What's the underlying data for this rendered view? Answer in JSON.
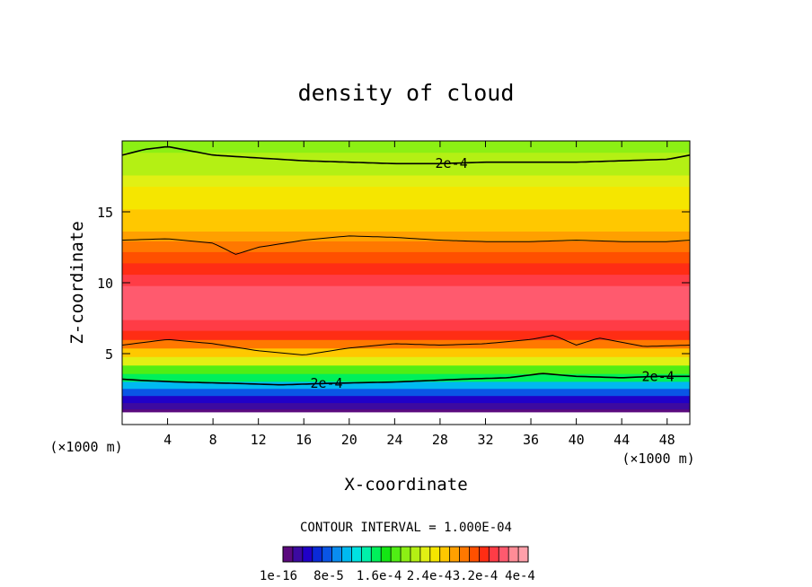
{
  "chart_data": {
    "type": "heatmap",
    "title": "density of cloud",
    "xlabel": "X-coordinate",
    "ylabel": "Z-coordinate",
    "x_unit_left": "(×1000 m)",
    "x_unit_right": "(×1000 m)",
    "xlim": [
      0,
      50
    ],
    "ylim": [
      0,
      20
    ],
    "x_ticks": [
      4,
      8,
      12,
      16,
      20,
      24,
      28,
      32,
      36,
      40,
      44,
      48
    ],
    "y_ticks": [
      5,
      10,
      15
    ],
    "contour_label": "2e-4",
    "contour_interval_text": "CONTOUR INTERVAL = 1.000E-04",
    "colorbar_labels": [
      "1e-16",
      "8e-5",
      "1.6e-4",
      "2.4e-4",
      "3.2e-4",
      "4e-4"
    ],
    "colorbar_colors": [
      "#5b0a7e",
      "#3c0aa0",
      "#2000c8",
      "#0a2ad8",
      "#0a55e6",
      "#0a8cf0",
      "#00b9f0",
      "#00e1e1",
      "#00f0aa",
      "#00f05a",
      "#14e614",
      "#50ee14",
      "#8cf014",
      "#b4f014",
      "#e1f014",
      "#f5e600",
      "#ffc800",
      "#ffa000",
      "#ff7800",
      "#ff5000",
      "#ff2d14",
      "#ff3c46",
      "#ff5a6e",
      "#ff8c96",
      "#ffa0aa"
    ],
    "profile": {
      "z": [
        0.9,
        1.3,
        1.8,
        2.3,
        2.8,
        3.3,
        3.9,
        4.5,
        5.1,
        5.7,
        6.3,
        7.0,
        7.8,
        8.6,
        9.4,
        10.2,
        11.0,
        11.8,
        12.6,
        13.3,
        14.0,
        14.8,
        15.6,
        16.4,
        17.2,
        18.0,
        18.8,
        19.6
      ],
      "density": [
        0.0,
        2e-05,
        4e-05,
        7e-05,
        0.00011,
        0.00015,
        0.00019,
        0.00023,
        0.00027,
        0.0003,
        0.00032,
        0.00034,
        0.000355,
        0.00036,
        0.000355,
        0.000345,
        0.00033,
        0.000315,
        0.0003,
        0.000285,
        0.00027,
        0.00026,
        0.00025,
        0.00024,
        0.00023,
        0.00022,
        0.00021,
        0.000195
      ]
    },
    "contour_lines": [
      {
        "level": "2e-4",
        "x": [
          0,
          2,
          5,
          10,
          14,
          18,
          24,
          30,
          34,
          37,
          40,
          44,
          47,
          50
        ],
        "z": [
          3.2,
          3.1,
          3.0,
          2.9,
          2.8,
          2.9,
          3.0,
          3.2,
          3.3,
          3.6,
          3.4,
          3.3,
          3.4,
          3.4
        ]
      },
      {
        "level": "",
        "x": [
          0,
          4,
          8,
          12,
          16,
          20,
          24,
          28,
          32,
          36,
          38,
          40,
          42,
          46,
          50
        ],
        "z": [
          5.6,
          6.0,
          5.7,
          5.2,
          4.9,
          5.4,
          5.7,
          5.6,
          5.7,
          6.0,
          6.3,
          5.6,
          6.1,
          5.5,
          5.6
        ]
      },
      {
        "level": "",
        "x": [
          0,
          4,
          8,
          10,
          12,
          16,
          20,
          24,
          28,
          32,
          36,
          40,
          44,
          48,
          50
        ],
        "z": [
          13.0,
          13.1,
          12.8,
          12.0,
          12.5,
          13.0,
          13.3,
          13.2,
          13.0,
          12.9,
          12.9,
          13.0,
          12.9,
          12.9,
          13.0
        ]
      },
      {
        "level": "2e-4",
        "x": [
          0,
          2,
          4,
          8,
          12,
          16,
          20,
          24,
          28,
          32,
          36,
          40,
          44,
          48,
          50
        ],
        "z": [
          19.0,
          19.4,
          19.6,
          19.0,
          18.8,
          18.6,
          18.5,
          18.4,
          18.4,
          18.5,
          18.5,
          18.5,
          18.6,
          18.7,
          19.0
        ]
      }
    ]
  }
}
